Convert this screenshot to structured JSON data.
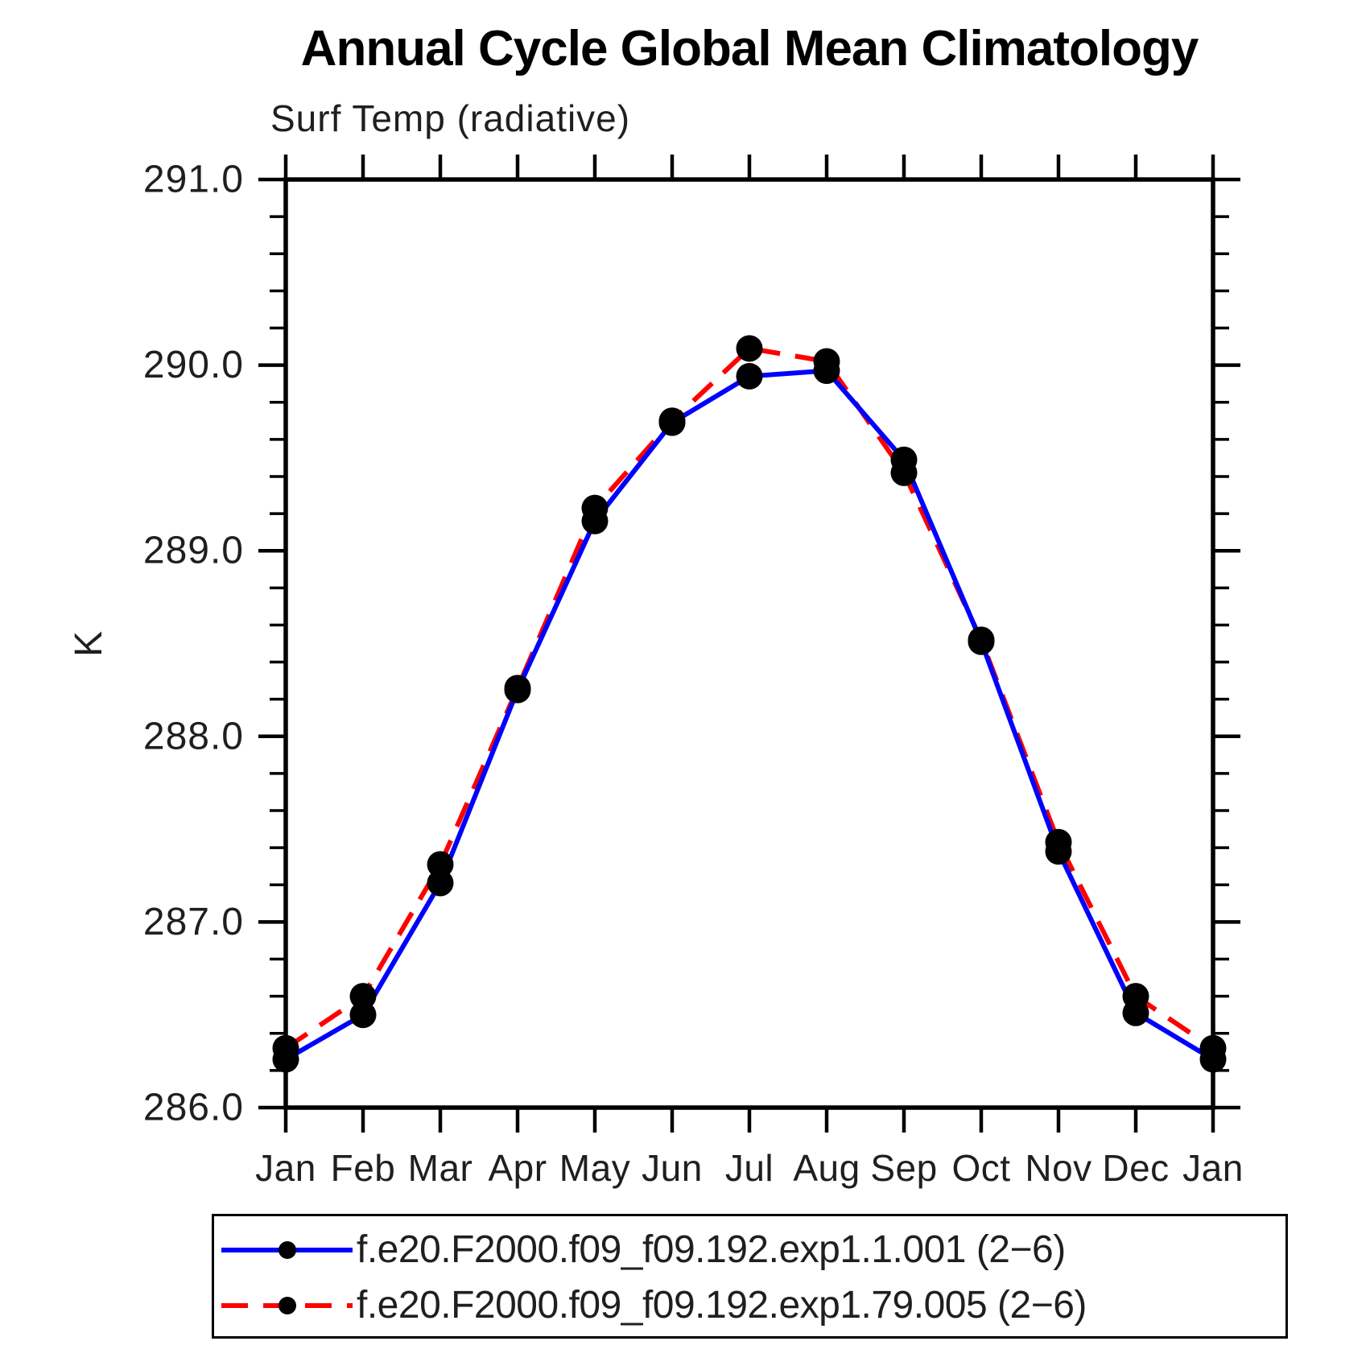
{
  "header": {
    "title": "Annual Cycle Global Mean Climatology",
    "subtitle": "Surf Temp (radiative)"
  },
  "chart_data": {
    "type": "line",
    "title": "Annual Cycle Global Mean Climatology",
    "subtitle": "Surf Temp (radiative)",
    "ylabel": "K",
    "ylim": [
      286.0,
      291.0
    ],
    "y_major_step": 1.0,
    "y_minor_step": 0.2,
    "grid": false,
    "legend_position": "bottom-left",
    "x_tick_labels": [
      "Jan",
      "Feb",
      "Mar",
      "Apr",
      "May",
      "Jun",
      "Jul",
      "Aug",
      "Sep",
      "Oct",
      "Nov",
      "Dec",
      "Jan"
    ],
    "y_tick_labels": [
      "286.0",
      "287.0",
      "288.0",
      "289.0",
      "290.0",
      "291.0"
    ],
    "marker_color": "#000000",
    "axis_color": "#000000",
    "series": [
      {
        "name": "f.e20.F2000.f09_f09.192.exp1.1.001 (2−6)",
        "color": "#0000ff",
        "line_style": "solid",
        "marker": "circle",
        "values": [
          286.26,
          286.5,
          287.21,
          288.25,
          289.16,
          289.69,
          289.94,
          289.97,
          289.49,
          288.51,
          287.38,
          286.51,
          286.26
        ]
      },
      {
        "name": "f.e20.F2000.f09_f09.192.exp1.79.005 (2−6)",
        "color": "#ff0000",
        "line_style": "dashed",
        "marker": "circle",
        "values": [
          286.32,
          286.6,
          287.31,
          288.26,
          289.23,
          289.7,
          290.09,
          290.02,
          289.42,
          288.52,
          287.43,
          286.6,
          286.32
        ]
      }
    ]
  }
}
